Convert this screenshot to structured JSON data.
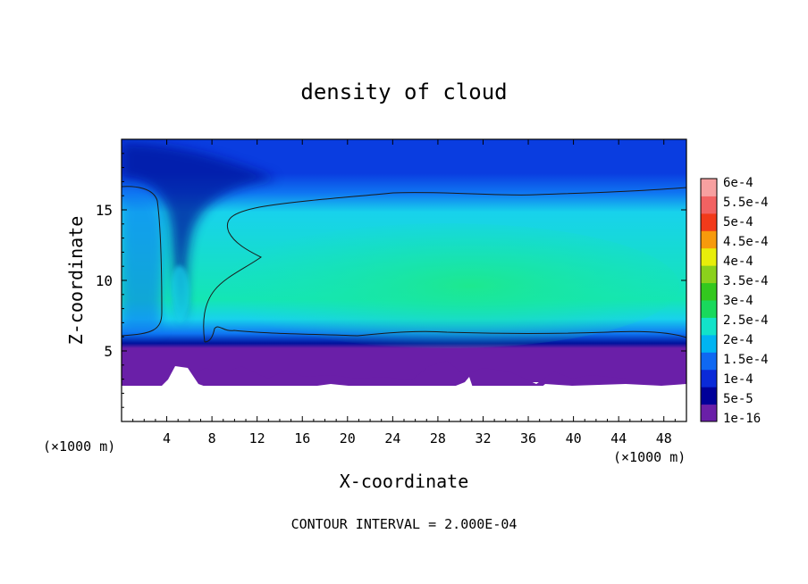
{
  "chart_data": {
    "type": "heatmap",
    "title": "density of cloud",
    "xlabel": "X-coordinate",
    "ylabel": "Z-coordinate",
    "x_unit": "(×1000 m)",
    "y_unit": "(×1000 m)",
    "x_ticks": [
      4,
      8,
      12,
      16,
      20,
      24,
      28,
      32,
      36,
      40,
      44,
      48
    ],
    "y_ticks": [
      5,
      10,
      15
    ],
    "xlim": [
      0,
      50
    ],
    "ylim": [
      0,
      20
    ],
    "footer": "CONTOUR INTERVAL = 2.000E-04",
    "colorbar": {
      "labels": [
        "1e-16",
        "5e-5",
        "1e-4",
        "1.5e-4",
        "2e-4",
        "2.5e-4",
        "3e-4",
        "3.5e-4",
        "4e-4",
        "4.5e-4",
        "5e-4",
        "5.5e-4",
        "6e-4"
      ],
      "colors": [
        "#6a1fa8",
        "#000099",
        "#0a2ad8",
        "#0f68f2",
        "#00b4f2",
        "#12e3c9",
        "#19d95c",
        "#33c81e",
        "#8bd11c",
        "#e8ee0a",
        "#f79a0c",
        "#f23a1a",
        "#f26262",
        "#f7a0a0"
      ]
    },
    "field_colors": {
      "background": "#ffffff",
      "band_upper": "#0a3de0",
      "band_lower": "#0f75f2",
      "interior": "#14e6b4",
      "interior_core": "#1de88f",
      "edge_cyan": "#18d2ec",
      "dark_streak": "#00129c",
      "surface": "#6a1fa8",
      "contour_line": "#1a1a1a"
    }
  }
}
